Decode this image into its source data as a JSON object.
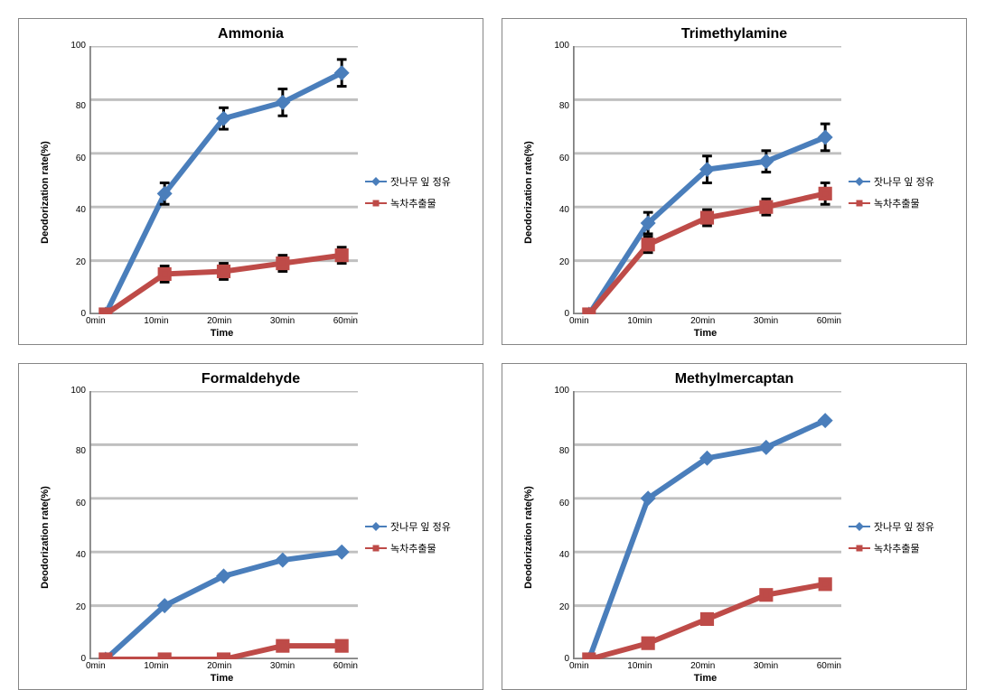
{
  "layout": {
    "rows": 2,
    "cols": 2,
    "panel_border_color": "#868686",
    "background_color": "#ffffff",
    "grid_color": "#c0c0c0",
    "axis_color": "#808080"
  },
  "axes": {
    "x_label": "Time",
    "y_label": "Deodorization rate(%)",
    "x_categories": [
      "0min",
      "10min",
      "20min",
      "30min",
      "60min"
    ],
    "y_min": 0,
    "y_max": 100,
    "y_tick_step": 20,
    "y_ticks": [
      100,
      80,
      60,
      40,
      20,
      0
    ],
    "title_fontsize": 16,
    "label_fontsize": 11,
    "tick_fontsize": 10
  },
  "legend": {
    "items": [
      {
        "key": "pine",
        "label": "잣나무 잎 정유",
        "color": "#4a7ebb",
        "marker": "diamond"
      },
      {
        "key": "green",
        "label": "녹차추출물",
        "color": "#be4b48",
        "marker": "square"
      }
    ],
    "position": "right-middle"
  },
  "line_width": 2,
  "marker_size": 7,
  "error_cap": 4,
  "charts": [
    {
      "title": "Ammonia",
      "type": "line",
      "series": {
        "pine": {
          "values": [
            0,
            45,
            73,
            79,
            90
          ],
          "errors": [
            0,
            4,
            4,
            5,
            5
          ]
        },
        "green": {
          "values": [
            0,
            15,
            16,
            19,
            22
          ],
          "errors": [
            0,
            3,
            3,
            3,
            3
          ]
        }
      }
    },
    {
      "title": "Trimethylamine",
      "type": "line",
      "series": {
        "pine": {
          "values": [
            0,
            34,
            54,
            57,
            66
          ],
          "errors": [
            0,
            4,
            5,
            4,
            5
          ]
        },
        "green": {
          "values": [
            0,
            26,
            36,
            40,
            45
          ],
          "errors": [
            0,
            3,
            3,
            3,
            4
          ]
        }
      }
    },
    {
      "title": "Formaldehyde",
      "type": "line",
      "series": {
        "pine": {
          "values": [
            0,
            20,
            31,
            37,
            40
          ],
          "errors": [
            0,
            0,
            0,
            0,
            0
          ]
        },
        "green": {
          "values": [
            0,
            0,
            0,
            5,
            5
          ],
          "errors": [
            0,
            0,
            0,
            0,
            0
          ]
        }
      }
    },
    {
      "title": "Methylmercaptan",
      "type": "line",
      "series": {
        "pine": {
          "values": [
            0,
            60,
            75,
            79,
            89
          ],
          "errors": [
            0,
            0,
            0,
            0,
            0
          ]
        },
        "green": {
          "values": [
            0,
            6,
            15,
            24,
            28
          ],
          "errors": [
            0,
            0,
            0,
            0,
            0
          ]
        }
      }
    }
  ]
}
